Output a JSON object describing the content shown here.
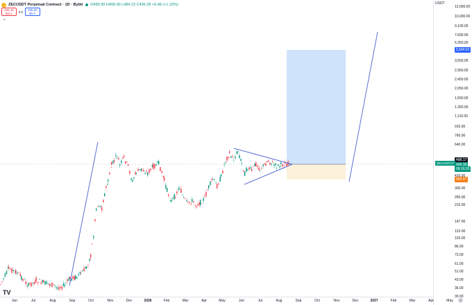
{
  "header": {
    "title": "ZECUSDT Perpetual Contract · 1D · Bybit",
    "ohlc": "O489.90 H498.90 L484.23 C496.38 +6.48 (+1.32%)"
  },
  "trade": {
    "sell_price": "496.49",
    "sell_label": "SELL",
    "spread": "0.0",
    "buy_price": "496.50",
    "buy_label": "BUY"
  },
  "chevron": "⌄",
  "y_axis": {
    "currency": "USDT",
    "ticks": [
      "12,000.00",
      "10,000.00",
      "9,100.00",
      "7,600.00",
      "6,350.00",
      "4,350.00",
      "3,550.00",
      "2,950.00",
      "2,450.00",
      "2,050.00",
      "1,650.00",
      "1,350.00",
      "1,110.00",
      "910.00",
      "760.00",
      "640.00",
      "510.00",
      "410.00",
      "300.00",
      "250.00",
      "210.00",
      "147.00",
      "123.00",
      "103.00",
      "86.00",
      "73.00",
      "61.00",
      "51.00",
      "43.00",
      "36.00",
      "30.00"
    ],
    "target_label": "5,584.52",
    "entry_label": "498.17",
    "current_label": "496.38",
    "countdown": "08:16:20",
    "stop_label": "363.47",
    "symbol_tag": "ZECUSDT.P"
  },
  "x_axis": {
    "ticks": [
      {
        "label": "Jun",
        "bold": false
      },
      {
        "label": "Jul",
        "bold": false
      },
      {
        "label": "Aug",
        "bold": false
      },
      {
        "label": "Sep",
        "bold": false
      },
      {
        "label": "Oct",
        "bold": false
      },
      {
        "label": "Nov",
        "bold": false
      },
      {
        "label": "Dec",
        "bold": false
      },
      {
        "label": "2026",
        "bold": true
      },
      {
        "label": "Feb",
        "bold": false
      },
      {
        "label": "Mar",
        "bold": false
      },
      {
        "label": "Apr",
        "bold": false
      },
      {
        "label": "May",
        "bold": false
      },
      {
        "label": "Jun",
        "bold": false
      },
      {
        "label": "Jul",
        "bold": false
      },
      {
        "label": "Aug",
        "bold": false
      },
      {
        "label": "Sep",
        "bold": false
      },
      {
        "label": "Oct",
        "bold": false
      },
      {
        "label": "Nov",
        "bold": false
      },
      {
        "label": "Dec",
        "bold": false
      },
      {
        "label": "2027",
        "bold": true
      },
      {
        "label": "Feb",
        "bold": false
      },
      {
        "label": "Mar",
        "bold": false
      },
      {
        "label": "Apr",
        "bold": false
      },
      {
        "label": "May",
        "bold": false
      }
    ]
  },
  "colors": {
    "up": "#089981",
    "down": "#f23645",
    "line": "#5b6fd6",
    "target_zone": "#cfe3fb",
    "stop_zone": "#fdf1dc",
    "target_tag": "#2962ff",
    "stop_tag": "#f57f17",
    "current_tag": "#089981",
    "entry_tag": "#131722"
  },
  "logo": "TV",
  "gear": "⚙"
}
